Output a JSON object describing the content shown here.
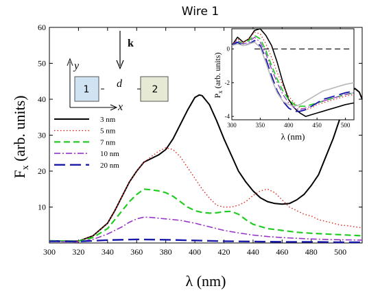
{
  "chart_data": {
    "type": "line",
    "title": "Wire 1",
    "xlabel": "λ (nm)",
    "ylabel_main": "F",
    "ylabel_sub": "x",
    "ylabel_units": " (arb. units)",
    "xlim": [
      300,
      515
    ],
    "ylim": [
      0,
      60
    ],
    "xticks": [
      "300",
      "320",
      "340",
      "360",
      "380",
      "400",
      "420",
      "440",
      "460",
      "480",
      "500"
    ],
    "yticks": [
      "10",
      "20",
      "30",
      "40",
      "50",
      "60"
    ],
    "grid": false,
    "legend_position": "left",
    "legend": [
      "3 nm",
      "5 nm",
      "7 nm",
      "10 nm",
      "20 nm"
    ],
    "series": [
      {
        "name": "3 nm",
        "color": "#000000",
        "dash": "solid",
        "x": [
          300,
          320,
          330,
          340,
          345,
          350,
          355,
          360,
          365,
          370,
          375,
          380,
          385,
          390,
          395,
          400,
          403,
          405,
          410,
          415,
          420,
          425,
          430,
          435,
          440,
          445,
          450,
          455,
          460,
          465,
          470,
          475,
          480,
          485,
          490,
          495,
          500,
          503,
          507,
          510,
          513,
          515
        ],
        "y": [
          0.6,
          0.5,
          2,
          5.5,
          9,
          13,
          17,
          20,
          22.5,
          23.5,
          24.5,
          26,
          29,
          33,
          37,
          40.5,
          41.2,
          41,
          38.5,
          34,
          29,
          24.5,
          20,
          17,
          14.5,
          12.6,
          11.5,
          11,
          10.8,
          11,
          12,
          13.5,
          16,
          19,
          24,
          29,
          35,
          39,
          42,
          43,
          42,
          40
        ]
      },
      {
        "name": "5 nm",
        "color": "#e0201a",
        "dash": "dotted",
        "x": [
          300,
          320,
          330,
          340,
          345,
          350,
          355,
          360,
          365,
          370,
          375,
          380,
          385,
          390,
          395,
          400,
          405,
          410,
          415,
          420,
          425,
          430,
          435,
          440,
          445,
          450,
          455,
          460,
          465,
          470,
          475,
          480,
          485,
          490,
          495,
          500,
          505,
          510,
          515
        ],
        "y": [
          0.6,
          0.5,
          2,
          5.5,
          9,
          13,
          17,
          20,
          22.5,
          24,
          25.5,
          26.5,
          26,
          24,
          21,
          18,
          15,
          12.5,
          10.5,
          10,
          10,
          10.5,
          11.5,
          13.2,
          14.5,
          15,
          14,
          12,
          10,
          9,
          8,
          7.5,
          6.5,
          6,
          5.5,
          5,
          4.8,
          4.5,
          4.2
        ]
      },
      {
        "name": "7 nm",
        "color": "#22cc22",
        "dash": "dashed",
        "x": [
          300,
          320,
          330,
          340,
          345,
          350,
          355,
          360,
          365,
          370,
          375,
          380,
          385,
          390,
          395,
          400,
          405,
          410,
          415,
          420,
          425,
          430,
          435,
          440,
          450,
          460,
          470,
          480,
          490,
          500,
          515
        ],
        "y": [
          0.6,
          0.5,
          1.5,
          4,
          6.5,
          9,
          11.5,
          13.5,
          15,
          14.8,
          14.5,
          14,
          13,
          11.5,
          10,
          9,
          8.5,
          8.3,
          8.4,
          8.7,
          8.8,
          8,
          6.5,
          5.2,
          4,
          3.5,
          3,
          2.7,
          2.5,
          2.3,
          2
        ]
      },
      {
        "name": "10 nm",
        "color": "#9933cc",
        "dash": "dashdot",
        "x": [
          300,
          320,
          330,
          340,
          350,
          355,
          360,
          365,
          370,
          375,
          380,
          390,
          400,
          410,
          420,
          430,
          440,
          450,
          460,
          470,
          480,
          490,
          500,
          515
        ],
        "y": [
          0.4,
          0.3,
          1,
          2.5,
          4.5,
          5.8,
          6.7,
          7.2,
          7.1,
          6.9,
          6.7,
          6.3,
          5.5,
          4.5,
          3.5,
          2.8,
          2.2,
          1.8,
          1.5,
          1.3,
          1.1,
          1,
          0.9,
          0.8
        ]
      },
      {
        "name": "20 nm",
        "color": "#1a1aaa",
        "dash": "longdash",
        "x": [
          300,
          320,
          340,
          360,
          380,
          400,
          420,
          440,
          460,
          480,
          500,
          515
        ],
        "y": [
          0.5,
          0.4,
          0.8,
          1,
          0.9,
          0.7,
          0.5,
          0.4,
          0.3,
          0.3,
          0.2,
          0.2
        ]
      }
    ],
    "inset": {
      "xlabel": "λ (nm)",
      "ylabel_main": "P",
      "ylabel_sub": "x",
      "ylabel_units": " (arb. units)",
      "xlim": [
        300,
        515
      ],
      "ylim": [
        -4.2,
        1.2
      ],
      "xticks": [
        "300",
        "350",
        "400",
        "450",
        "500"
      ],
      "yticks": [
        "0",
        "-2",
        "-4"
      ],
      "reference_line": 0,
      "series": [
        {
          "name": "3 nm",
          "color": "#000000",
          "dash": "solid",
          "x": [
            300,
            310,
            320,
            330,
            340,
            350,
            360,
            370,
            380,
            390,
            400,
            410,
            420,
            430,
            440,
            450,
            460,
            470,
            480,
            490,
            500,
            515
          ],
          "y": [
            0.2,
            0.7,
            0.4,
            0.6,
            1.1,
            1.2,
            0.8,
            0.2,
            -0.8,
            -2.0,
            -3.0,
            -3.5,
            -3.8,
            -4.0,
            -3.9,
            -3.8,
            -3.7,
            -3.6,
            -3.5,
            -3.4,
            -3.3,
            -3.2
          ]
        },
        {
          "name": "5 nm",
          "color": "#e0201a",
          "dash": "dotted",
          "x": [
            300,
            310,
            320,
            330,
            340,
            350,
            360,
            370,
            380,
            390,
            400,
            410,
            420,
            430,
            440,
            450,
            460,
            470,
            480,
            490,
            500,
            515
          ],
          "y": [
            0.2,
            0.6,
            0.4,
            0.6,
            1.0,
            0.9,
            0.3,
            -0.5,
            -1.4,
            -2.2,
            -2.8,
            -3.2,
            -3.5,
            -3.6,
            -3.5,
            -3.3,
            -3.2,
            -3.1,
            -3.0,
            -2.9,
            -2.8,
            -2.7
          ]
        },
        {
          "name": "7 nm",
          "color": "#22cc22",
          "dash": "dashed",
          "x": [
            300,
            310,
            320,
            330,
            340,
            350,
            360,
            370,
            380,
            390,
            400,
            410,
            420,
            430,
            440,
            450,
            460,
            470,
            480,
            490,
            500,
            515
          ],
          "y": [
            0.2,
            0.5,
            0.3,
            0.5,
            0.8,
            0.6,
            -0.1,
            -1.0,
            -1.8,
            -2.5,
            -3.0,
            -3.3,
            -3.4,
            -3.4,
            -3.3,
            -3.2,
            -3.1,
            -3.0,
            -2.9,
            -2.8,
            -2.7,
            -2.6
          ]
        },
        {
          "name": "10 nm",
          "color": "#9933cc",
          "dash": "dashdot",
          "x": [
            300,
            310,
            320,
            330,
            340,
            350,
            360,
            370,
            380,
            390,
            400,
            410,
            420,
            430,
            440,
            450,
            460,
            470,
            480,
            490,
            500,
            515
          ],
          "y": [
            0.2,
            0.5,
            0.3,
            0.4,
            0.7,
            0.4,
            -0.3,
            -1.2,
            -2.0,
            -2.7,
            -3.2,
            -3.5,
            -3.6,
            -3.5,
            -3.4,
            -3.2,
            -3.1,
            -3.0,
            -2.9,
            -2.8,
            -2.7,
            -2.6
          ]
        },
        {
          "name": "20 nm",
          "color": "#1a1aaa",
          "dash": "longdash",
          "x": [
            300,
            310,
            320,
            330,
            340,
            350,
            360,
            370,
            380,
            390,
            400,
            410,
            420,
            430,
            440,
            450,
            460,
            470,
            480,
            490,
            500,
            515
          ],
          "y": [
            0.2,
            0.4,
            0.2,
            0.3,
            0.5,
            0.2,
            -0.6,
            -1.6,
            -2.5,
            -3.1,
            -3.5,
            -3.7,
            -3.7,
            -3.6,
            -3.4,
            -3.2,
            -3.0,
            -2.9,
            -2.8,
            -2.7,
            -2.6,
            -2.5
          ]
        },
        {
          "name": "grey",
          "color": "#b8b8b8",
          "dash": "solid",
          "x": [
            300,
            310,
            320,
            330,
            340,
            350,
            360,
            370,
            380,
            390,
            400,
            410,
            420,
            430,
            440,
            450,
            460,
            470,
            480,
            490,
            500,
            515
          ],
          "y": [
            0.2,
            0.3,
            0.2,
            0.3,
            0.4,
            0.1,
            -0.8,
            -1.8,
            -2.6,
            -3.1,
            -3.3,
            -3.4,
            -3.3,
            -3.1,
            -2.9,
            -2.7,
            -2.5,
            -2.4,
            -2.3,
            -2.2,
            -2.1,
            -2.0
          ]
        }
      ]
    },
    "schematic": {
      "axis_y": "y",
      "axis_x": "x",
      "wave_vector": "k",
      "gap": "d",
      "wire1": "1",
      "wire2": "2",
      "wire1_color": "#cfe3f3",
      "wire2_color": "#e6ead4"
    }
  }
}
